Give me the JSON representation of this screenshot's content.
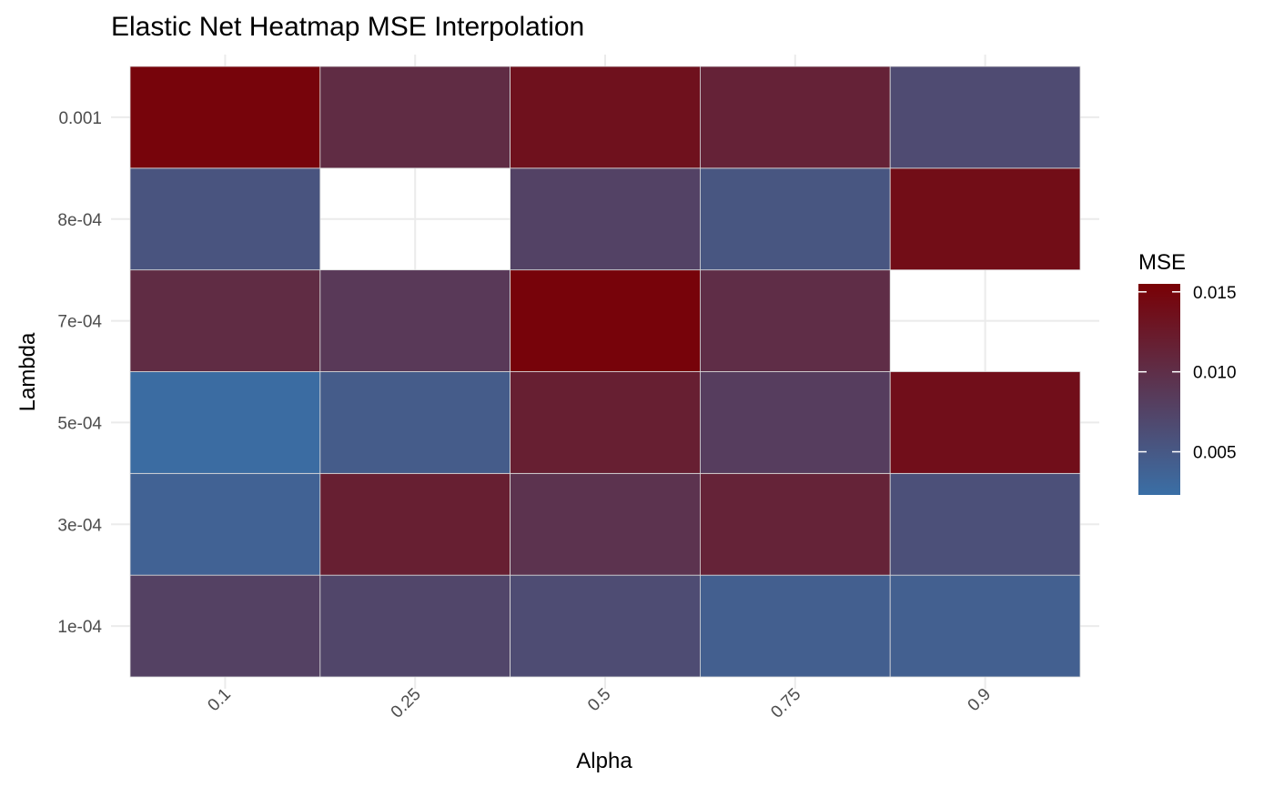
{
  "chart_data": {
    "type": "heatmap",
    "title": "Elastic Net Heatmap MSE Interpolation",
    "xlabel": "Alpha",
    "ylabel": "Lambda",
    "x_categories": [
      "0.1",
      "0.25",
      "0.5",
      "0.75",
      "0.9"
    ],
    "y_categories": [
      "1e-04",
      "3e-04",
      "5e-04",
      "7e-04",
      "8e-04",
      "0.001"
    ],
    "values": [
      [
        0.0078,
        0.0072,
        0.0065,
        0.0042,
        0.0041
      ],
      [
        0.0038,
        0.0118,
        0.0094,
        0.0113,
        0.006
      ],
      [
        0.0026,
        0.0046,
        0.0118,
        0.0082,
        0.0138
      ],
      [
        0.0103,
        0.0087,
        0.0151,
        0.0101,
        null
      ],
      [
        0.0055,
        null,
        0.0076,
        0.0053,
        0.014
      ],
      [
        0.015,
        0.0103,
        0.0135,
        0.0114,
        0.0066
      ]
    ],
    "legend": {
      "title": "MSE",
      "ticks": [
        "0.005",
        "0.010",
        "0.015"
      ],
      "tick_values": [
        0.005,
        0.01,
        0.015
      ],
      "min": 0.0023,
      "max": 0.0155,
      "low_color": "#3a6fa6",
      "high_color": "#790005",
      "position": "right"
    },
    "grid": true,
    "colors": {
      "grid": "#ebebeb",
      "tile_border": "#dcdcdc",
      "tick_text": "#4d4d4d"
    }
  }
}
